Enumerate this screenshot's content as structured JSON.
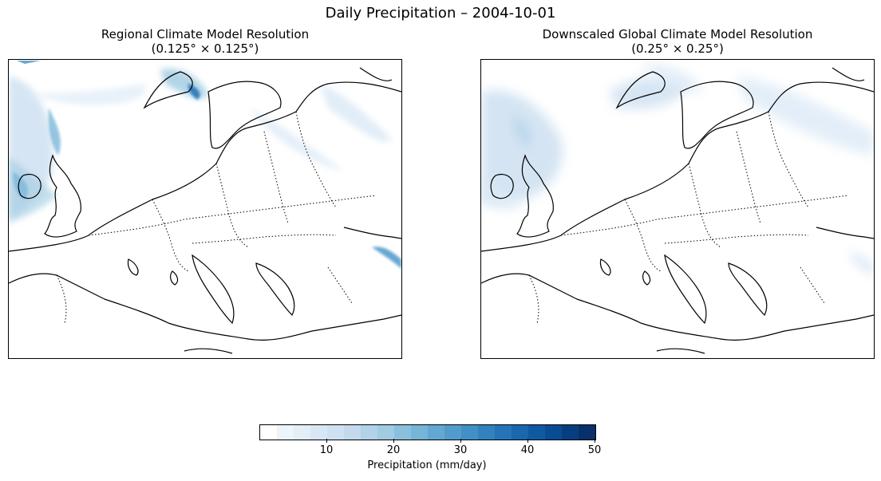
{
  "figure": {
    "title": "Daily Precipitation – 2004-10-01"
  },
  "panels": [
    {
      "title_line1": "Regional Climate Model Resolution",
      "title_line2": "(0.125° × 0.125°)"
    },
    {
      "title_line1": "Downscaled Global Climate Model Resolution",
      "title_line2": "(0.25° × 0.25°)"
    }
  ],
  "colorbar": {
    "label": "Precipitation (mm/day)",
    "min": 0,
    "max": 50,
    "ticks": [
      10,
      20,
      30,
      40,
      50
    ],
    "tick_labels": [
      "10",
      "20",
      "30",
      "40",
      "50"
    ],
    "bins": 20,
    "colormap": "Blues",
    "colors": [
      "#f7fbff",
      "#deebf7",
      "#c6dbef",
      "#9ecae1",
      "#6baed6",
      "#4292c6",
      "#2171b5",
      "#08519c",
      "#08306b"
    ]
  },
  "colors": {
    "coast": "#000000",
    "border": "#000000"
  }
}
